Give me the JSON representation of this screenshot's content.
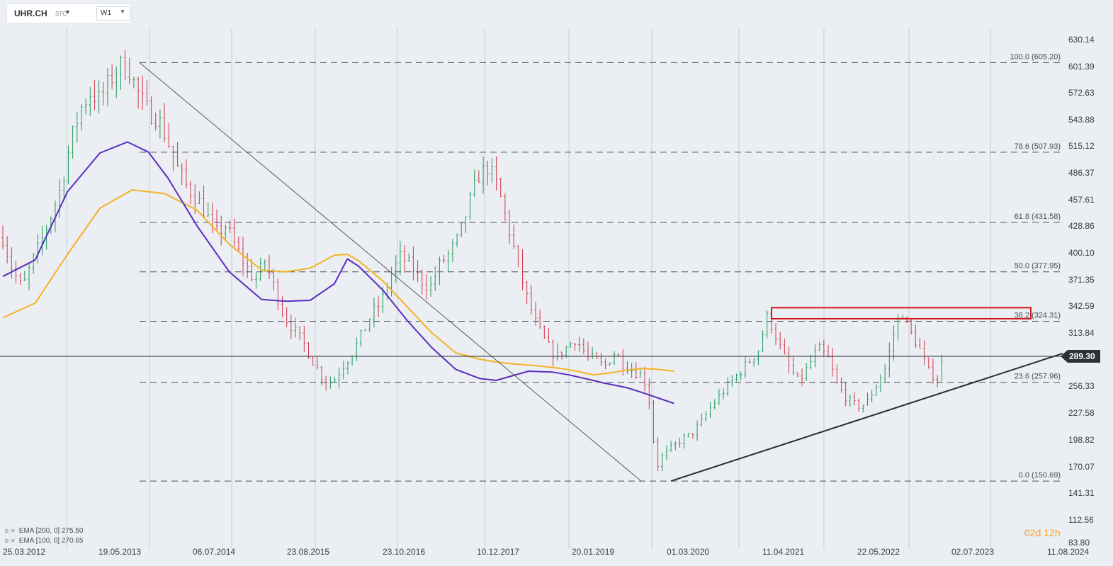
{
  "toolbar": {
    "symbol": "UHR.CH",
    "symbol_suffix": "STC",
    "timeframe": "W1"
  },
  "indicators": [
    {
      "label": "EMA [200, 0]",
      "value": "275.50",
      "color": "#5b2dbf"
    },
    {
      "label": "EMA [100, 0]",
      "value": "270.65",
      "color": "#f5b225"
    }
  ],
  "countdown": {
    "days": "02",
    "days_unit": "d",
    "hours": "12",
    "hours_unit": "h"
  },
  "current_price": "289.30",
  "chart_data": {
    "type": "candlestick",
    "y_ticks": [
      "630.14",
      "601.39",
      "572.63",
      "543.88",
      "515.12",
      "486.37",
      "457.61",
      "428.86",
      "400.10",
      "371.35",
      "342.59",
      "313.84",
      "289.30",
      "256.33",
      "227.58",
      "198.82",
      "170.07",
      "141.31",
      "112.56",
      "83.80"
    ],
    "x_ticks": [
      "25.03.2012",
      "19.05.2013",
      "06.07.2014",
      "23.08.2015",
      "23.10.2016",
      "10.12.2017",
      "20.01.2019",
      "01.03.2020",
      "11.04.2021",
      "22.05.2022",
      "02.07.2023",
      "11.08.2024"
    ],
    "ylim": [
      83.8,
      645
    ],
    "fibonacci": [
      {
        "label": "100.0 (605.20)",
        "price": 605.2
      },
      {
        "label": "78.6 (507.93)",
        "price": 507.93
      },
      {
        "label": "61.8 (431.58)",
        "price": 431.58
      },
      {
        "label": "50.0 (377.95)",
        "price": 377.95
      },
      {
        "label": "38.2 (324.31)",
        "price": 324.31
      },
      {
        "label": "23.6 (257.96)",
        "price": 257.96
      },
      {
        "label": "0.0 (150.69)",
        "price": 150.69
      }
    ],
    "price_path": [
      [
        0.0,
        415
      ],
      [
        0.6,
        380
      ],
      [
        1.2,
        360
      ],
      [
        1.8,
        388
      ],
      [
        2.4,
        412
      ],
      [
        3.0,
        440
      ],
      [
        3.6,
        470
      ],
      [
        4.2,
        520
      ],
      [
        4.8,
        555
      ],
      [
        5.4,
        572
      ],
      [
        6.0,
        565
      ],
      [
        6.6,
        585
      ],
      [
        7.2,
        602
      ],
      [
        7.8,
        598
      ],
      [
        8.4,
        570
      ],
      [
        9.0,
        552
      ],
      [
        9.6,
        545
      ],
      [
        10.2,
        520
      ],
      [
        10.8,
        490
      ],
      [
        11.4,
        470
      ],
      [
        12.0,
        458
      ],
      [
        12.6,
        440
      ],
      [
        13.2,
        420
      ],
      [
        13.8,
        428
      ],
      [
        14.4,
        405
      ],
      [
        15.0,
        385
      ],
      [
        15.6,
        368
      ],
      [
        16.2,
        390
      ],
      [
        16.8,
        360
      ],
      [
        17.4,
        330
      ],
      [
        18.0,
        315
      ],
      [
        18.6,
        300
      ],
      [
        19.2,
        280
      ],
      [
        19.8,
        262
      ],
      [
        20.4,
        258
      ],
      [
        21.0,
        275
      ],
      [
        21.6,
        290
      ],
      [
        22.2,
        310
      ],
      [
        22.8,
        332
      ],
      [
        23.4,
        345
      ],
      [
        24.0,
        375
      ],
      [
        24.6,
        395
      ],
      [
        25.2,
        385
      ],
      [
        25.8,
        370
      ],
      [
        26.4,
        360
      ],
      [
        27.0,
        385
      ],
      [
        27.6,
        398
      ],
      [
        28.2,
        415
      ],
      [
        28.8,
        450
      ],
      [
        29.4,
        482
      ],
      [
        30.0,
        492
      ],
      [
        30.6,
        470
      ],
      [
        31.2,
        430
      ],
      [
        31.8,
        390
      ],
      [
        32.4,
        350
      ],
      [
        33.0,
        320
      ],
      [
        33.6,
        300
      ],
      [
        34.2,
        285
      ],
      [
        34.8,
        295
      ],
      [
        35.4,
        305
      ],
      [
        36.0,
        290
      ],
      [
        36.6,
        282
      ],
      [
        37.2,
        275
      ],
      [
        37.8,
        290
      ],
      [
        38.4,
        278
      ],
      [
        39.0,
        270
      ],
      [
        39.6,
        265
      ],
      [
        40.0,
        235
      ],
      [
        40.4,
        165
      ],
      [
        40.8,
        178
      ],
      [
        41.4,
        188
      ],
      [
        42.0,
        196
      ],
      [
        42.6,
        202
      ],
      [
        43.2,
        215
      ],
      [
        43.8,
        232
      ],
      [
        44.4,
        245
      ],
      [
        45.0,
        258
      ],
      [
        45.6,
        270
      ],
      [
        46.2,
        282
      ],
      [
        46.8,
        295
      ],
      [
        47.2,
        330
      ],
      [
        47.6,
        318
      ],
      [
        48.0,
        298
      ],
      [
        48.6,
        275
      ],
      [
        49.2,
        258
      ],
      [
        49.8,
        275
      ],
      [
        50.4,
        295
      ],
      [
        51.0,
        285
      ],
      [
        51.6,
        255
      ],
      [
        52.2,
        240
      ],
      [
        52.8,
        232
      ],
      [
        53.4,
        235
      ],
      [
        54.0,
        255
      ],
      [
        54.6,
        275
      ],
      [
        55.2,
        320
      ],
      [
        55.6,
        335
      ],
      [
        56.0,
        315
      ],
      [
        56.6,
        298
      ],
      [
        57.2,
        270
      ],
      [
        57.8,
        262
      ],
      [
        58.2,
        288
      ]
    ],
    "ema200": [
      [
        0.0,
        373
      ],
      [
        2.0,
        391
      ],
      [
        4.0,
        465
      ],
      [
        6.0,
        507
      ],
      [
        7.7,
        519
      ],
      [
        9.0,
        508
      ],
      [
        10.2,
        480
      ],
      [
        12.0,
        428
      ],
      [
        14.0,
        378
      ],
      [
        16.0,
        348
      ],
      [
        17.5,
        346
      ],
      [
        19.0,
        347
      ],
      [
        20.5,
        365
      ],
      [
        21.3,
        392
      ],
      [
        22.0,
        384
      ],
      [
        23.5,
        358
      ],
      [
        25.0,
        325
      ],
      [
        26.5,
        296
      ],
      [
        28.0,
        272
      ],
      [
        29.5,
        262
      ],
      [
        30.5,
        260
      ],
      [
        31.5,
        265
      ],
      [
        32.5,
        270
      ],
      [
        34.0,
        269
      ],
      [
        35.0,
        266
      ],
      [
        36.0,
        262
      ],
      [
        37.2,
        257
      ],
      [
        38.6,
        252
      ],
      [
        39.5,
        247
      ],
      [
        40.5,
        241
      ],
      [
        41.5,
        235
      ]
    ],
    "ema100": [
      [
        0.0,
        328
      ],
      [
        2.0,
        344
      ],
      [
        4.0,
        397
      ],
      [
        6.0,
        447
      ],
      [
        8.0,
        467
      ],
      [
        10.0,
        463
      ],
      [
        12.0,
        445
      ],
      [
        14.0,
        408
      ],
      [
        16.0,
        380
      ],
      [
        17.5,
        378
      ],
      [
        19.0,
        382
      ],
      [
        20.5,
        396
      ],
      [
        21.3,
        397
      ],
      [
        22.0,
        390
      ],
      [
        23.5,
        368
      ],
      [
        25.0,
        340
      ],
      [
        26.5,
        312
      ],
      [
        28.0,
        290
      ],
      [
        29.5,
        283
      ],
      [
        30.5,
        280
      ],
      [
        31.5,
        278
      ],
      [
        33.0,
        276
      ],
      [
        34.5,
        273
      ],
      [
        35.5,
        270
      ],
      [
        36.5,
        266
      ],
      [
        37.5,
        268
      ],
      [
        38.5,
        271
      ],
      [
        39.5,
        273
      ],
      [
        40.5,
        272
      ],
      [
        41.5,
        270
      ]
    ],
    "trendline_down": [
      [
        0.0,
        605.2
      ],
      [
        29.6,
        150.69
      ]
    ],
    "trendline_up": [
      [
        31.0,
        150.69
      ],
      [
        60.9,
        289.3
      ]
    ],
    "resistance_zone": {
      "from_week": 46.8,
      "to_week": 59.0,
      "high": 339,
      "low": 327
    }
  }
}
